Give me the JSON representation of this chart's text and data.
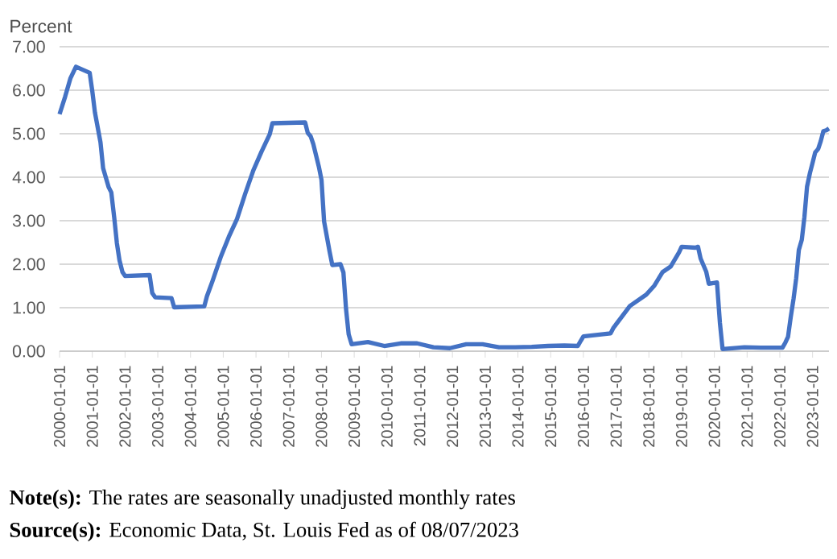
{
  "chart_data": {
    "type": "line",
    "ylabel": "Percent",
    "x": [
      "2000-01",
      "2000-03",
      "2000-05",
      "2000-07",
      "2000-12",
      "2001-01",
      "2001-02",
      "2001-04",
      "2001-05",
      "2001-07",
      "2001-08",
      "2001-09",
      "2001-10",
      "2001-11",
      "2001-12",
      "2002-01",
      "2002-10",
      "2002-11",
      "2002-12",
      "2003-06",
      "2003-07",
      "2004-06",
      "2004-07",
      "2004-09",
      "2004-12",
      "2005-03",
      "2005-06",
      "2005-09",
      "2005-12",
      "2006-03",
      "2006-06",
      "2006-07",
      "2007-07",
      "2007-08",
      "2007-09",
      "2007-10",
      "2007-12",
      "2008-01",
      "2008-02",
      "2008-03",
      "2008-04",
      "2008-05",
      "2008-08",
      "2008-09",
      "2008-10",
      "2008-11",
      "2008-12",
      "2009-06",
      "2009-12",
      "2010-06",
      "2010-12",
      "2011-06",
      "2011-12",
      "2012-06",
      "2012-12",
      "2013-06",
      "2013-12",
      "2014-06",
      "2014-12",
      "2015-06",
      "2015-11",
      "2015-12",
      "2016-01",
      "2016-11",
      "2016-12",
      "2017-03",
      "2017-06",
      "2017-12",
      "2018-03",
      "2018-06",
      "2018-09",
      "2018-12",
      "2019-01",
      "2019-06",
      "2019-07",
      "2019-08",
      "2019-10",
      "2019-11",
      "2020-02",
      "2020-03",
      "2020-04",
      "2020-12",
      "2021-06",
      "2021-12",
      "2022-02",
      "2022-03",
      "2022-04",
      "2022-05",
      "2022-06",
      "2022-07",
      "2022-08",
      "2022-09",
      "2022-10",
      "2022-11",
      "2022-12",
      "2023-01",
      "2023-02",
      "2023-03",
      "2023-04",
      "2023-05",
      "2023-06",
      "2023-07"
    ],
    "series": [
      {
        "color": "#4472c4",
        "line_style": "solid",
        "values": [
          5.45,
          5.85,
          6.27,
          6.54,
          6.4,
          5.98,
          5.49,
          4.8,
          4.21,
          3.77,
          3.65,
          3.07,
          2.49,
          2.09,
          1.82,
          1.73,
          1.75,
          1.34,
          1.24,
          1.22,
          1.01,
          1.03,
          1.26,
          1.61,
          2.16,
          2.63,
          3.04,
          3.62,
          4.16,
          4.59,
          4.99,
          5.24,
          5.26,
          5.02,
          4.94,
          4.76,
          4.24,
          3.94,
          2.98,
          2.61,
          2.28,
          1.98,
          2.0,
          1.81,
          0.97,
          0.39,
          0.16,
          0.21,
          0.12,
          0.18,
          0.18,
          0.09,
          0.07,
          0.16,
          0.16,
          0.09,
          0.09,
          0.1,
          0.12,
          0.13,
          0.12,
          0.24,
          0.34,
          0.41,
          0.54,
          0.79,
          1.04,
          1.3,
          1.51,
          1.82,
          1.95,
          2.27,
          2.4,
          2.38,
          2.4,
          2.13,
          1.83,
          1.55,
          1.58,
          0.65,
          0.05,
          0.09,
          0.08,
          0.08,
          0.08,
          0.2,
          0.33,
          0.77,
          1.21,
          1.68,
          2.33,
          2.56,
          3.08,
          3.78,
          4.1,
          4.33,
          4.57,
          4.65,
          4.83,
          5.06,
          5.08,
          5.12
        ]
      }
    ],
    "xlim": [
      "2000-01",
      "2023-07"
    ],
    "xticks": [
      {
        "value": "2000-01",
        "label": "2000-01-01"
      },
      {
        "value": "2001-01",
        "label": "2001-01-01"
      },
      {
        "value": "2002-01",
        "label": "2002-01-01"
      },
      {
        "value": "2003-01",
        "label": "2003-01-01"
      },
      {
        "value": "2004-01",
        "label": "2004-01-01"
      },
      {
        "value": "2005-01",
        "label": "2005-01-01"
      },
      {
        "value": "2006-01",
        "label": "2006-01-01"
      },
      {
        "value": "2007-01",
        "label": "2007-01-01"
      },
      {
        "value": "2008-01",
        "label": "2008-01-01"
      },
      {
        "value": "2009-01",
        "label": "2009-01-01"
      },
      {
        "value": "2010-01",
        "label": "2010-01-01"
      },
      {
        "value": "2011-01",
        "label": "2011-01-01"
      },
      {
        "value": "2012-01",
        "label": "2012-01-01"
      },
      {
        "value": "2013-01",
        "label": "2013-01-01"
      },
      {
        "value": "2014-01",
        "label": "2014-01-01"
      },
      {
        "value": "2015-01",
        "label": "2015-01-01"
      },
      {
        "value": "2016-01",
        "label": "2016-01-01"
      },
      {
        "value": "2017-01",
        "label": "2017-01-01"
      },
      {
        "value": "2018-01",
        "label": "2018-01-01"
      },
      {
        "value": "2019-01",
        "label": "2019-01-01"
      },
      {
        "value": "2020-01",
        "label": "2020-01-01"
      },
      {
        "value": "2021-01",
        "label": "2021-01-01"
      },
      {
        "value": "2022-01",
        "label": "2022-01-01"
      },
      {
        "value": "2023-01",
        "label": "2023-01-01"
      }
    ],
    "ylim": [
      0,
      7
    ],
    "yticks": [
      {
        "value": 0,
        "label": "0.00"
      },
      {
        "value": 1,
        "label": "1.00"
      },
      {
        "value": 2,
        "label": "2.00"
      },
      {
        "value": 3,
        "label": "3.00"
      },
      {
        "value": 4,
        "label": "4.00"
      },
      {
        "value": 5,
        "label": "5.00"
      },
      {
        "value": 6,
        "label": "6.00"
      },
      {
        "value": 7,
        "label": "7.00"
      }
    ],
    "grid": "y",
    "annotations": [
      "**Note(s):** The rates are seasonally unadjusted monthly rates",
      "**Source(s):** Economic Data, St. Louis Fed as of 08/07/2023"
    ]
  }
}
